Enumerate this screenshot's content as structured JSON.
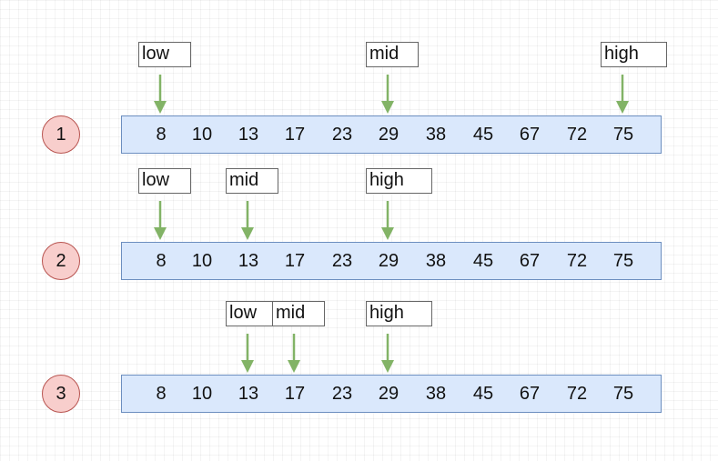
{
  "steps": [
    {
      "number": "1",
      "array": [
        "8",
        "10",
        "13",
        "17",
        "23",
        "29",
        "38",
        "45",
        "67",
        "72",
        "75"
      ],
      "pointers": [
        {
          "label": "low",
          "index": 0
        },
        {
          "label": "mid",
          "index": 5
        },
        {
          "label": "high",
          "index": 10
        }
      ]
    },
    {
      "number": "2",
      "array": [
        "8",
        "10",
        "13",
        "17",
        "23",
        "29",
        "38",
        "45",
        "67",
        "72",
        "75"
      ],
      "pointers": [
        {
          "label": "low",
          "index": 0
        },
        {
          "label": "mid",
          "index": 2
        },
        {
          "label": "high",
          "index": 5
        }
      ]
    },
    {
      "number": "3",
      "array": [
        "8",
        "10",
        "13",
        "17",
        "23",
        "29",
        "38",
        "45",
        "67",
        "72",
        "75"
      ],
      "pointers": [
        {
          "label": "low",
          "index": 2
        },
        {
          "label": "mid",
          "index": 3
        },
        {
          "label": "high",
          "index": 5
        }
      ]
    }
  ],
  "colors": {
    "array_fill": "#dae8fc",
    "array_border": "#6c8ebf",
    "step_fill": "#f8cecc",
    "step_border": "#b85450",
    "arrow": "#82b366",
    "label_border": "#666666"
  }
}
